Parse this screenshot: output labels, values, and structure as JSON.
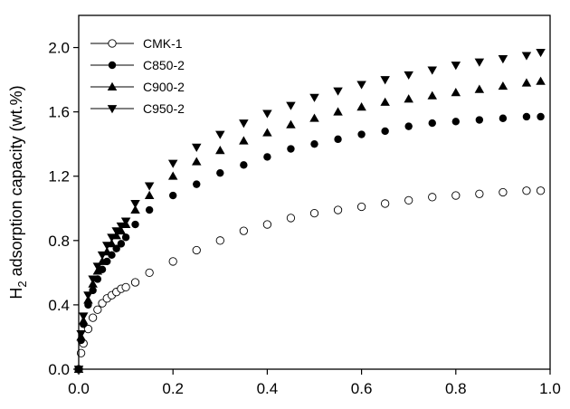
{
  "chart_data": {
    "type": "scatter",
    "title": "",
    "ylabel": {
      "prefix": "H",
      "sub": "2",
      "rest": " adsorption capacity (wt.%)"
    },
    "xlabel": "",
    "xlim": [
      0,
      1.0
    ],
    "ylim": [
      0,
      2.2
    ],
    "xticks": [
      0.0,
      0.2,
      0.4,
      0.6,
      0.8,
      1.0
    ],
    "xtick_labels": [
      "0.0",
      "0.2",
      "0.4",
      "0.6",
      "0.8",
      "1.0"
    ],
    "yticks": [
      0.0,
      0.4,
      0.8,
      1.2,
      1.6,
      2.0
    ],
    "ytick_labels": [
      "0.0",
      "0.4",
      "0.8",
      "1.2",
      "1.6",
      "2.0"
    ],
    "grid": false,
    "legend_position": "top-left",
    "series": [
      {
        "name": "CMK-1",
        "marker": "open-circle",
        "color": "#000000",
        "x": [
          0.0,
          0.005,
          0.01,
          0.02,
          0.03,
          0.04,
          0.05,
          0.06,
          0.07,
          0.08,
          0.09,
          0.1,
          0.12,
          0.15,
          0.2,
          0.25,
          0.3,
          0.35,
          0.4,
          0.45,
          0.5,
          0.55,
          0.6,
          0.65,
          0.7,
          0.75,
          0.8,
          0.85,
          0.9,
          0.95,
          0.98
        ],
        "y": [
          0.0,
          0.1,
          0.16,
          0.25,
          0.32,
          0.37,
          0.41,
          0.44,
          0.46,
          0.48,
          0.5,
          0.51,
          0.54,
          0.6,
          0.67,
          0.74,
          0.8,
          0.86,
          0.9,
          0.94,
          0.97,
          0.99,
          1.01,
          1.03,
          1.05,
          1.07,
          1.08,
          1.09,
          1.1,
          1.11,
          1.11
        ]
      },
      {
        "name": "C850-2",
        "marker": "filled-circle",
        "color": "#000000",
        "x": [
          0.0,
          0.005,
          0.01,
          0.02,
          0.03,
          0.04,
          0.05,
          0.06,
          0.07,
          0.08,
          0.09,
          0.1,
          0.12,
          0.15,
          0.2,
          0.25,
          0.3,
          0.35,
          0.4,
          0.45,
          0.5,
          0.55,
          0.6,
          0.65,
          0.7,
          0.75,
          0.8,
          0.85,
          0.9,
          0.95,
          0.98
        ],
        "y": [
          0.0,
          0.18,
          0.28,
          0.4,
          0.49,
          0.56,
          0.62,
          0.67,
          0.71,
          0.75,
          0.78,
          0.82,
          0.9,
          0.99,
          1.08,
          1.15,
          1.22,
          1.27,
          1.32,
          1.37,
          1.4,
          1.43,
          1.46,
          1.48,
          1.51,
          1.53,
          1.54,
          1.55,
          1.56,
          1.57,
          1.57
        ]
      },
      {
        "name": "C900-2",
        "marker": "filled-triangle-up",
        "color": "#000000",
        "x": [
          0.0,
          0.005,
          0.01,
          0.02,
          0.03,
          0.04,
          0.05,
          0.06,
          0.07,
          0.08,
          0.09,
          0.1,
          0.12,
          0.15,
          0.2,
          0.25,
          0.3,
          0.35,
          0.4,
          0.45,
          0.5,
          0.55,
          0.6,
          0.65,
          0.7,
          0.75,
          0.8,
          0.85,
          0.9,
          0.95,
          0.98
        ],
        "y": [
          0.0,
          0.2,
          0.3,
          0.43,
          0.53,
          0.61,
          0.67,
          0.73,
          0.78,
          0.83,
          0.86,
          0.9,
          0.99,
          1.08,
          1.2,
          1.29,
          1.36,
          1.42,
          1.47,
          1.52,
          1.56,
          1.6,
          1.63,
          1.66,
          1.68,
          1.7,
          1.72,
          1.74,
          1.76,
          1.78,
          1.79
        ]
      },
      {
        "name": "C950-2",
        "marker": "filled-triangle-down",
        "color": "#000000",
        "x": [
          0.0,
          0.005,
          0.01,
          0.02,
          0.03,
          0.04,
          0.05,
          0.06,
          0.07,
          0.08,
          0.09,
          0.1,
          0.12,
          0.15,
          0.2,
          0.25,
          0.3,
          0.35,
          0.4,
          0.45,
          0.5,
          0.55,
          0.6,
          0.65,
          0.7,
          0.75,
          0.8,
          0.85,
          0.9,
          0.95,
          0.98
        ],
        "y": [
          0.0,
          0.22,
          0.33,
          0.46,
          0.56,
          0.64,
          0.71,
          0.77,
          0.82,
          0.86,
          0.89,
          0.92,
          1.03,
          1.14,
          1.28,
          1.38,
          1.46,
          1.53,
          1.59,
          1.64,
          1.69,
          1.73,
          1.77,
          1.8,
          1.83,
          1.86,
          1.89,
          1.91,
          1.93,
          1.95,
          1.97
        ]
      }
    ]
  }
}
